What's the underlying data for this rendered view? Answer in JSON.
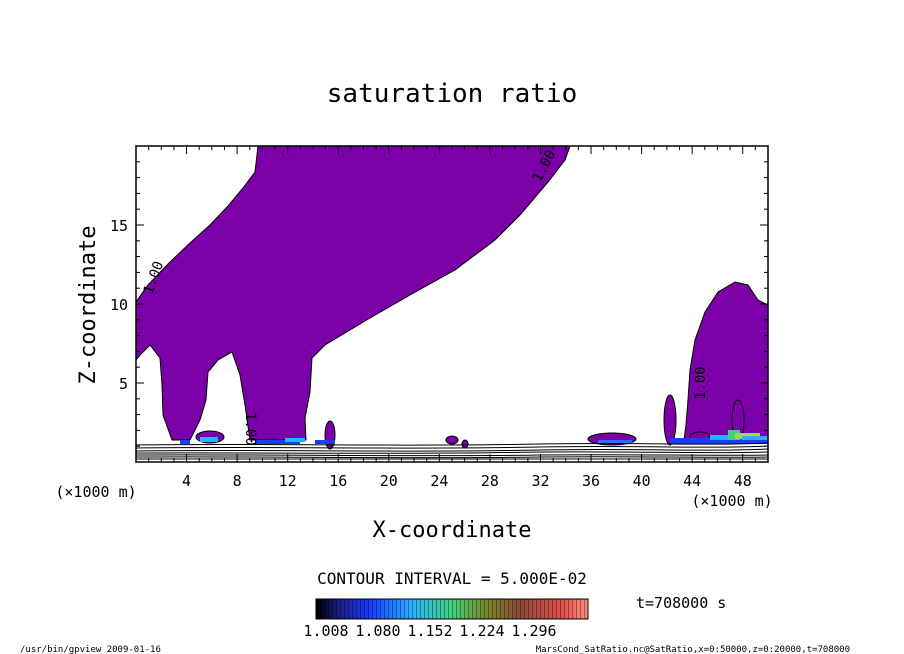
{
  "chart_data": {
    "type": "heatmap",
    "title": "saturation ratio",
    "xlabel": "X-coordinate",
    "ylabel": "Z-coordinate",
    "x_unit": "(×1000 m)",
    "xlim": [
      0,
      50
    ],
    "ylim": [
      0,
      20
    ],
    "x_ticks": [
      4,
      8,
      12,
      16,
      20,
      24,
      28,
      32,
      36,
      40,
      44,
      48
    ],
    "y_ticks": [
      5,
      10,
      15
    ],
    "contour_interval": "CONTOUR INTERVAL = 5.000E-02",
    "contour_labels": [
      "1.00",
      "1.00",
      "1.00",
      "1.00"
    ],
    "colorbar": {
      "ticks": [
        "1.008",
        "1.080",
        "1.152",
        "1.224",
        "1.296"
      ],
      "range": [
        1.0,
        1.3
      ]
    },
    "time_label": "t=708000 s",
    "colors": {
      "fill": "#7b00a8",
      "contour": "#000000"
    }
  },
  "footer": {
    "left": "/usr/bin/gpview  2009-01-16",
    "right": "MarsCond_SatRatio.nc@SatRatio,x=0:50000,z=0:20000,t=708000"
  }
}
